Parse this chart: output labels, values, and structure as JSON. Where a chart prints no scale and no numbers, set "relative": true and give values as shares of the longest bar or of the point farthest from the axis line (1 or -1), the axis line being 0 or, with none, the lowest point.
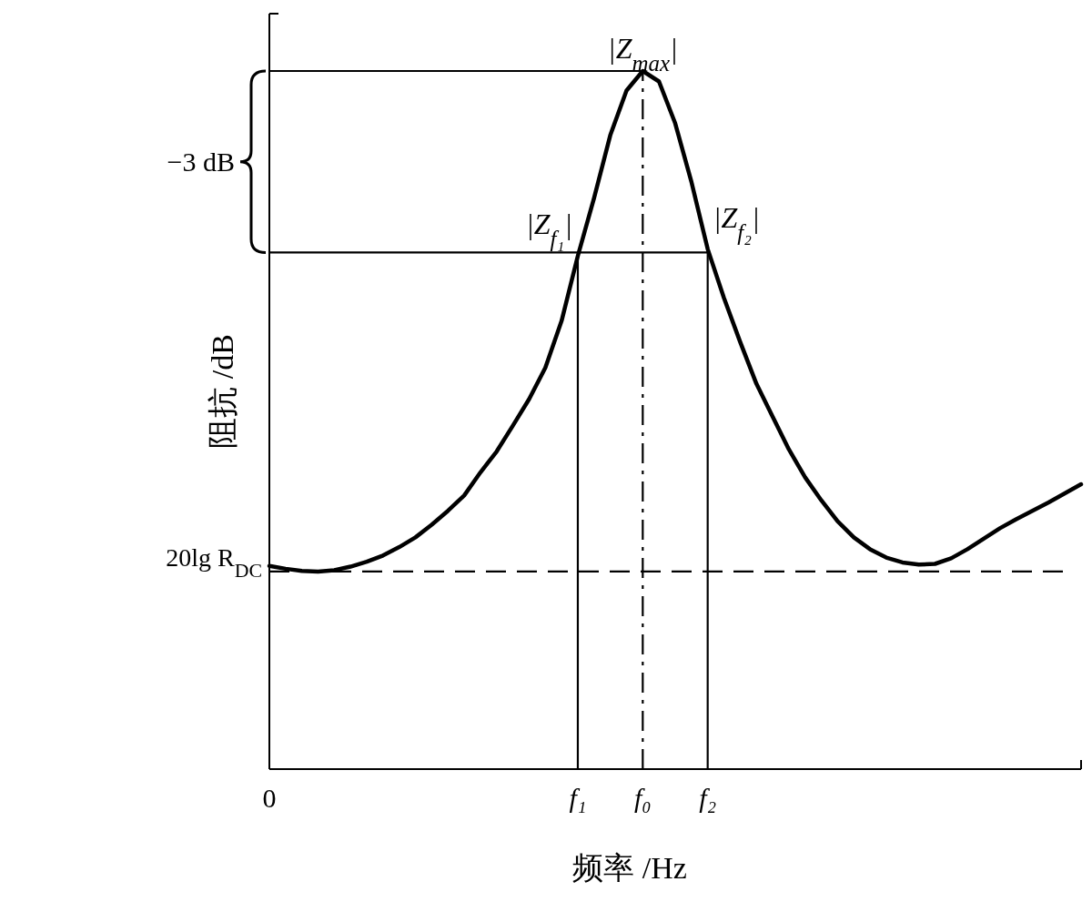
{
  "chart_data": {
    "type": "line",
    "relative": true,
    "xlabel": "频率 /Hz",
    "ylabel": "阻抗 /dB",
    "categories": [
      "0",
      null,
      null,
      null,
      null,
      null,
      null,
      null,
      null,
      null,
      null,
      null,
      null,
      null,
      null,
      null,
      null,
      null,
      null,
      "f₁",
      null,
      null,
      null,
      "f₀",
      null,
      null,
      null,
      "f₂",
      null,
      null,
      null,
      null,
      null,
      null,
      null,
      null,
      null,
      null,
      null,
      null,
      null,
      null,
      null,
      null,
      null,
      null,
      null,
      null,
      null,
      null,
      null
    ],
    "series": [
      {
        "color": "#000000",
        "values": [
          0.291,
          0.287,
          0.284,
          0.283,
          0.285,
          0.29,
          0.297,
          0.306,
          0.318,
          0.332,
          0.35,
          0.37,
          0.392,
          0.425,
          0.455,
          0.492,
          0.53,
          0.575,
          0.642,
          0.735,
          0.818,
          0.908,
          0.972,
          1,
          0.985,
          0.925,
          0.841,
          0.745,
          0.675,
          0.612,
          0.552,
          0.505,
          0.458,
          0.418,
          0.385,
          0.355,
          0.332,
          0.315,
          0.303,
          0.296,
          0.293,
          0.294,
          0.302,
          0.315,
          0.33,
          0.345,
          0.358,
          0.37,
          0.382,
          0.395,
          0.408
        ]
      }
    ],
    "ref_lines": [
      {
        "axis": "y",
        "value": 0.283,
        "label": "20lg R$_{DC}$",
        "line_style": "dashed",
        "color": "#000000"
      },
      {
        "axis": "y",
        "value": 1,
        "color": "#000000"
      },
      {
        "axis": "y",
        "value": 0.74,
        "color": "#000000"
      },
      {
        "axis": "x",
        "value": "f₁",
        "color": "#000000"
      },
      {
        "axis": "x",
        "value": "f₀",
        "color": "#000000",
        "line_style": "dashdot"
      },
      {
        "axis": "x",
        "value": "f₂",
        "color": "#000000"
      }
    ],
    "annotations": [
      {
        "text": "|Z$_{max}$|",
        "x": "f₀",
        "y": 1
      },
      {
        "text": "|Z$_{f₁}$|",
        "x": "f₁",
        "y": 0.735
      },
      {
        "text": "|Z$_{f₂}$|",
        "x": "f₂",
        "y": 0.745
      },
      "−3 dB"
    ]
  }
}
